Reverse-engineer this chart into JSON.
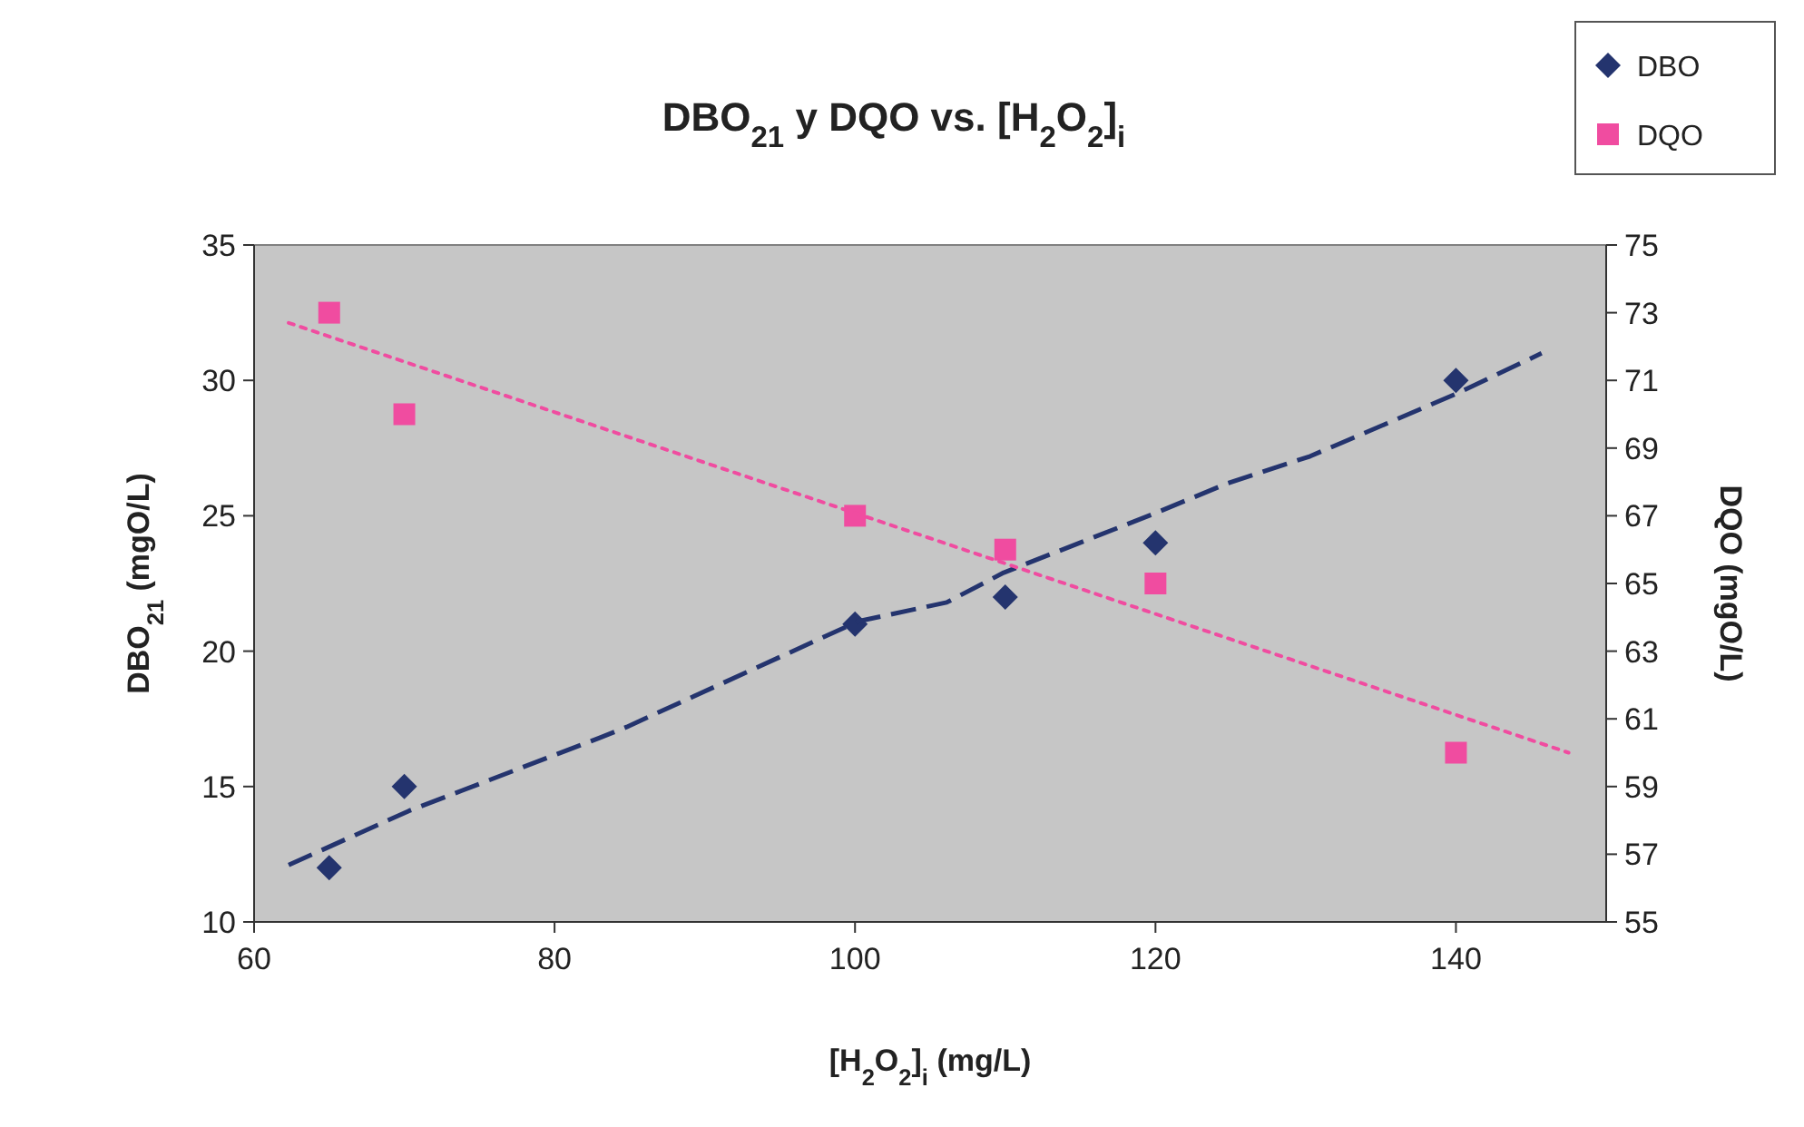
{
  "chart_data": {
    "type": "scatter",
    "title": "DBO$_{21}$ y DQO  vs.  [H$_{2}$O$_{2}$]$_{i}$",
    "xlabel": "[H$_{2}$O$_{2}$]$_{i}$ (mg/L)",
    "ylabel": "DBO$_{21}$ (mgO/L)",
    "y2label": "DQO (mgO/L)",
    "xlim": [
      60,
      150
    ],
    "xticks": [
      60,
      80,
      100,
      120,
      140
    ],
    "ylim": [
      10,
      35
    ],
    "yticks": [
      10,
      15,
      20,
      25,
      30,
      35
    ],
    "y2lim": [
      55,
      75
    ],
    "y2ticks": [
      55,
      57,
      59,
      61,
      63,
      65,
      67,
      69,
      71,
      73,
      75
    ],
    "grid": false,
    "legend": "top right",
    "series": [
      {
        "name": "DBO",
        "marker": "diamond",
        "color": "#24346e",
        "x": [
          65,
          70,
          100,
          110,
          120,
          140
        ],
        "values": [
          12,
          15,
          21,
          22,
          24,
          30
        ]
      },
      {
        "name": "DQO",
        "marker": "square",
        "color": "#f04ca0",
        "axis": "y2",
        "x": [
          65,
          70,
          100,
          110,
          120,
          140
        ],
        "values": [
          73,
          70,
          67,
          66,
          65,
          60
        ]
      },
      {
        "type": "line",
        "marker": "none",
        "line_style": "dashed",
        "color": "#24346e",
        "x": [
          62.3,
          70.3,
          83,
          84.8,
          100.2,
          106.1,
          109.9,
          120,
          124.8,
          130.3,
          140,
          145.7
        ],
        "values": [
          12.1,
          14.1,
          16.8,
          17.2,
          21.1,
          21.8,
          22.9,
          25.1,
          26.2,
          27.2,
          29.5,
          31
        ]
      },
      {
        "type": "line",
        "marker": "none",
        "line_style": "dotted",
        "color": "#f04ca0",
        "axis": "y2",
        "x": [
          62.3,
          147.5
        ],
        "values": [
          72.7,
          60
        ]
      }
    ]
  }
}
